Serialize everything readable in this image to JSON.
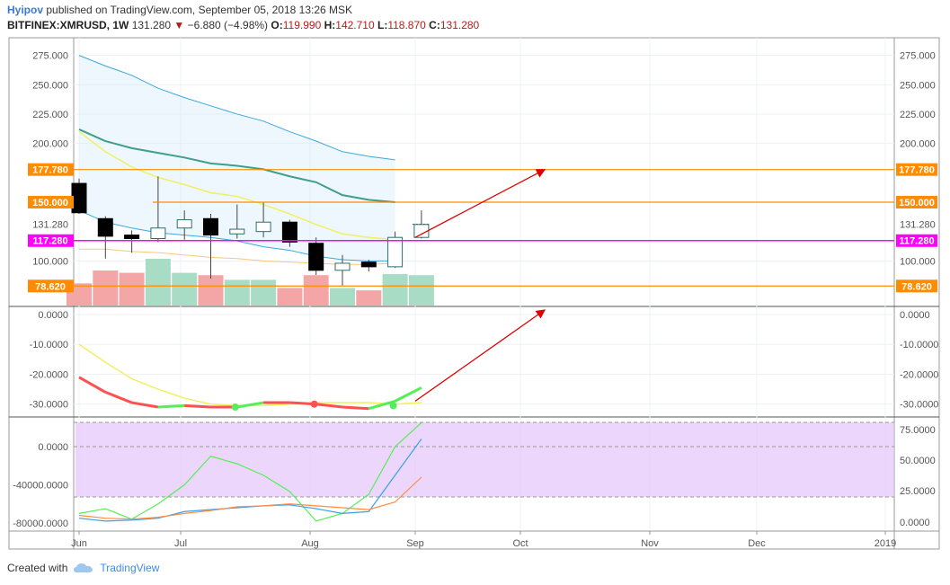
{
  "header": {
    "author": "Hyipov",
    "published": "published on TradingView.com, September 05, 2018 13:26 MSK",
    "symbol": "BITFINEX:XMRUSD, 1W",
    "last": "131.280",
    "change_arrow": "▼",
    "change": "−6.880 (−4.98%)",
    "o_label": "O:",
    "o_value": "119.990",
    "h_label": "H:",
    "h_value": "142.710",
    "l_label": "L:",
    "l_value": "118.870",
    "c_label": "C:",
    "c_value": "131.280"
  },
  "footer": {
    "created_with": "Created with",
    "brand": "TradingView"
  },
  "colors": {
    "up_body": "#ffffff",
    "down_body": "#000000",
    "candle_outline": "#2c6e6e",
    "vol_up": "#a8dcc4",
    "vol_down": "#f4a6a6",
    "orange_level": "#ff8c00",
    "magenta_level": "#ff00ff",
    "arrow": "#e00000",
    "bb_band": "#cfe8fa",
    "bb_line": "#3aa8e0",
    "ma_green": "#3f9e8c",
    "ma_yellow": "#f0f060",
    "osc_red": "#ff5050",
    "osc_green": "#55ee55",
    "osc_yellow": "#f0f060",
    "stoch_band": "#e6c8fb",
    "stoch_green": "#55ee55",
    "stoch_blue": "#3aa0e8",
    "stoch_orange": "#ff8c40"
  },
  "chart_data": [
    {
      "type": "candlestick",
      "title": "BITFINEX:XMRUSD, 1W",
      "ylim": [
        62,
        290
      ],
      "yticks": [
        "275.000",
        "250.000",
        "225.000",
        "200.000",
        "100.000"
      ],
      "x_labels": [
        "Jun",
        "Jul",
        "Aug",
        "Sep",
        "Oct",
        "Nov",
        "Dec",
        "2019"
      ],
      "candles": [
        {
          "o": 166,
          "h": 170,
          "l": 140,
          "c": 141
        },
        {
          "o": 136,
          "h": 138,
          "l": 102,
          "c": 121
        },
        {
          "o": 122,
          "h": 126,
          "l": 107,
          "c": 119
        },
        {
          "o": 119,
          "h": 172,
          "l": 116,
          "c": 128
        },
        {
          "o": 128,
          "h": 143,
          "l": 118,
          "c": 135
        },
        {
          "o": 136,
          "h": 140,
          "l": 85,
          "c": 122
        },
        {
          "o": 123,
          "h": 148,
          "l": 119,
          "c": 127
        },
        {
          "o": 125,
          "h": 150,
          "l": 120,
          "c": 133
        },
        {
          "o": 133,
          "h": 135,
          "l": 112,
          "c": 116
        },
        {
          "o": 115,
          "h": 120,
          "l": 88,
          "c": 92
        },
        {
          "o": 92,
          "h": 105,
          "l": 79,
          "c": 98
        },
        {
          "o": 99,
          "h": 101,
          "l": 91,
          "c": 95
        },
        {
          "o": 95,
          "h": 125,
          "l": 94,
          "c": 120
        },
        {
          "o": 120,
          "h": 143,
          "l": 119,
          "c": 131
        }
      ],
      "volume_rel": [
        0.95,
        1.5,
        1.4,
        2.0,
        1.4,
        1.3,
        1.1,
        1.1,
        0.75,
        1.3,
        0.75,
        0.65,
        1.35,
        1.3
      ],
      "volume_dir": [
        "down",
        "down",
        "down",
        "up",
        "up",
        "down",
        "up",
        "up",
        "down",
        "down",
        "up",
        "down",
        "up",
        "up"
      ],
      "bb_upper": [
        275,
        266,
        258,
        247,
        239,
        232,
        225,
        219,
        210,
        202,
        193,
        189,
        186
      ],
      "bb_basis": [
        143,
        133,
        128,
        124,
        122,
        120,
        117,
        112,
        109,
        104,
        101,
        100,
        100
      ],
      "ma_green": [
        212,
        202,
        196,
        192,
        188,
        183,
        181,
        178,
        172,
        167,
        156,
        152,
        150
      ],
      "ma_yellow": [
        210,
        193,
        180,
        171,
        165,
        158,
        155,
        148,
        140,
        131,
        123,
        120,
        118
      ],
      "ma_orange": [
        110,
        110,
        108,
        107,
        105,
        103,
        102,
        100,
        99,
        98,
        97,
        97,
        98
      ],
      "levels": [
        {
          "value": 177.78,
          "label": "177.780",
          "color": "orange"
        },
        {
          "value": 150.0,
          "label": "150.000",
          "color": "orange"
        },
        {
          "value": 117.28,
          "label": "117.280",
          "color": "magenta"
        },
        {
          "value": 78.62,
          "label": "78.620",
          "color": "orange"
        }
      ],
      "last_price_label": "131.280"
    },
    {
      "type": "line",
      "ylim": [
        -34,
        0
      ],
      "yticks": [
        "0.0000",
        "-10.0000",
        "-20.0000",
        "-30.0000"
      ],
      "series": [
        {
          "values": [
            -21,
            -26,
            -29.5,
            -31,
            -30.5,
            -31,
            -31,
            -29.5,
            -29.5,
            -30,
            -31,
            -31.5,
            -29,
            -24.5
          ]
        },
        {
          "values": [
            -10,
            -16,
            -21.5,
            -25,
            -28,
            -30,
            -30.5,
            -30.5,
            -30,
            -29.5,
            -29.5,
            -29.5,
            -30,
            -29.5
          ]
        }
      ],
      "markers": [
        -31,
        -30,
        -30.5
      ]
    },
    {
      "type": "line",
      "ylim": [
        -90000,
        30000
      ],
      "yticks": [
        "0.0000",
        "-40000.0000",
        "-80000.0000"
      ],
      "right_ticks": [
        "75.0000",
        "50.0000",
        "25.0000",
        "0.0000"
      ],
      "series": [
        {
          "values": [
            -70000,
            -65000,
            -76000,
            -60000,
            -40000,
            -10000,
            -18000,
            -30000,
            -47000,
            -78000,
            -70000,
            -50000,
            0,
            25000
          ]
        },
        {
          "values": [
            -75000,
            -78000,
            -77000,
            -75000,
            -68000,
            -66000,
            -64000,
            -62000,
            -61000,
            -65000,
            -70000,
            -68000,
            -30000,
            8000
          ]
        },
        {
          "values": [
            -72000,
            -75000,
            -76000,
            -74000,
            -70000,
            -67000,
            -63000,
            -62000,
            -60000,
            -62000,
            -64000,
            -66000,
            -58000,
            -32000
          ]
        }
      ]
    }
  ]
}
